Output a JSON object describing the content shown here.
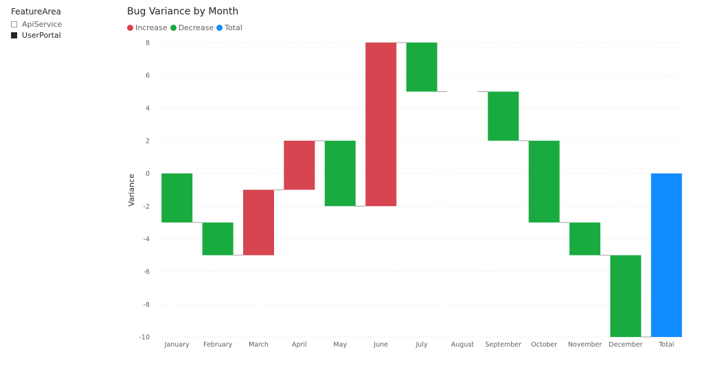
{
  "slicer": {
    "title": "FeatureArea",
    "items": [
      {
        "label": "ApiService",
        "checked": false
      },
      {
        "label": "UserPortal",
        "checked": true
      }
    ]
  },
  "legend": {
    "items": [
      {
        "label": "Increase",
        "color": "#d64550"
      },
      {
        "label": "Decrease",
        "color": "#1aab40"
      },
      {
        "label": "Total",
        "color": "#118dff"
      }
    ]
  },
  "chart_data": {
    "type": "waterfall",
    "title": "Bug Variance by Month",
    "ylabel": "Variance",
    "xlabel": "",
    "ylim": [
      -10,
      8
    ],
    "yticks": [
      8,
      6,
      4,
      2,
      0,
      -2,
      -4,
      -6,
      -8,
      -10
    ],
    "grid": true,
    "legend_position": "top-left",
    "categories": [
      "January",
      "February",
      "March",
      "April",
      "May",
      "June",
      "July",
      "August",
      "September",
      "October",
      "November",
      "December",
      "Total"
    ],
    "changes": [
      -3,
      -2,
      4,
      3,
      -4,
      10,
      -3,
      0,
      -3,
      -5,
      -2,
      -5
    ],
    "total_label": "Total",
    "total_value": -10,
    "colors": {
      "increase": "#d64550",
      "decrease": "#1aab40",
      "total": "#118dff"
    }
  }
}
